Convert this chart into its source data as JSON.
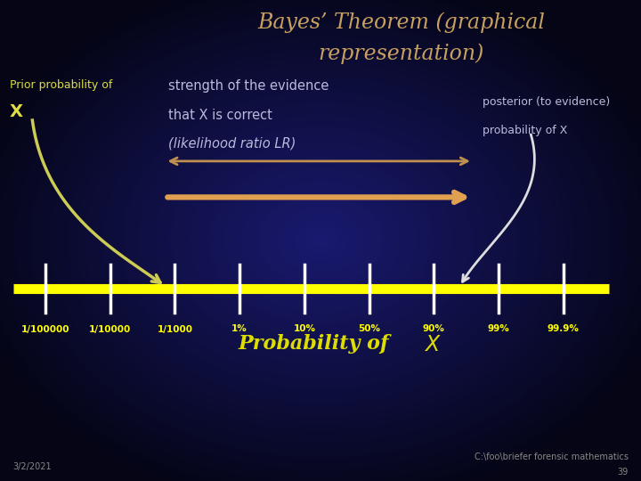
{
  "title_line1": "Bayes’ Theorem (graphical",
  "title_line2": "representation)",
  "title_color": "#C8A060",
  "bg_color_center": "#1a1a6e",
  "bg_color_edge": "#060618",
  "prior_label_line1": "Prior probability of",
  "prior_label_line2": "X",
  "prior_label_color": "#DDDD44",
  "strength_label_line1": "strength of the evidence",
  "strength_label_line2": "that X is correct",
  "strength_label_line3": "(likelihood ratio LR)",
  "strength_label_color": "#BBBBDD",
  "posterior_label_line1": "posterior (to evidence)",
  "posterior_label_line2": "probability of X",
  "posterior_label_color": "#BBBBDD",
  "prob_label": "Probability of  ",
  "prob_label_x_part": "X",
  "prob_label_color": "#DDDD00",
  "axis_color": "#FFFF00",
  "axis_lw": 8,
  "tick_labels": [
    "1/100000",
    "1/10000",
    "1/1000",
    "1%",
    "10%",
    "50%",
    "90%",
    "99%",
    "99.9%"
  ],
  "tick_positions": [
    0,
    1,
    2,
    3,
    4,
    5,
    6,
    7,
    8
  ],
  "arrow_color": "#E0A050",
  "double_arrow_color": "#C09050",
  "prior_arrow_color": "#CCCC55",
  "posterior_arrow_color": "#DDDDDD",
  "date_text": "3/2/2021",
  "date_color": "#888888",
  "footer_text": "C:\\foo\\briefer forensic mathematics",
  "footer_num": "39",
  "footer_color": "#888888",
  "axis_y": 4.0,
  "xlim_min": -0.7,
  "xlim_max": 9.2,
  "ylim_min": 0,
  "ylim_max": 10
}
